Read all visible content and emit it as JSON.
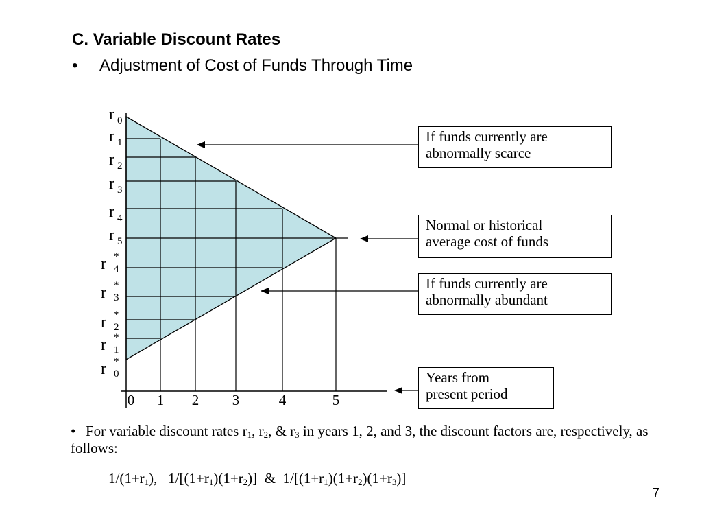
{
  "title": "C. Variable Discount Rates",
  "bullet": {
    "marker": "•",
    "text": "Adjustment of Cost of Funds Through Time"
  },
  "diagram": {
    "fill_color": "#bfe2e7",
    "y_labels": [
      {
        "base": "r",
        "sub": "0",
        "star": ""
      },
      {
        "base": "r",
        "sub": "1",
        "star": ""
      },
      {
        "base": "r",
        "sub": "2",
        "star": ""
      },
      {
        "base": "r",
        "sub": "3",
        "star": ""
      },
      {
        "base": "r",
        "sub": "4",
        "star": ""
      },
      {
        "base": "r",
        "sub": "5",
        "star": ""
      },
      {
        "base": "r",
        "sub": "4",
        "star": "*"
      },
      {
        "base": "r",
        "sub": "3",
        "star": "*"
      },
      {
        "base": "r",
        "sub": "2",
        "star": "*"
      },
      {
        "base": "r",
        "sub": "1",
        "star": "*"
      },
      {
        "base": "r",
        "sub": "0",
        "star": "*"
      }
    ],
    "x_labels": [
      "0",
      "1",
      "2",
      "3",
      "4",
      "5"
    ]
  },
  "callouts": {
    "scarce": {
      "line1": "If funds currently are",
      "line2": "abnormally scarce"
    },
    "normal": {
      "line1": "Normal or historical",
      "line2": "average cost of funds"
    },
    "abundant": {
      "line1": "If funds currently are",
      "line2": "abnormally abundant"
    },
    "years": {
      "line1": "Years from",
      "line2": "present period"
    }
  },
  "bottom": {
    "marker": "•",
    "intro": "For variable discount rates r",
    "s1": "1",
    "comma1": ", r",
    "s2": "2",
    "amp": ", & r",
    "s3": "3",
    "rest": " in years 1, 2, and 3, the discount factors are, respectively, as follows:"
  },
  "formula": {
    "f1a": "1/(1+r",
    "f1s": "1",
    "f1b": "),",
    "f2a": "1/[(1+r",
    "f2s1": "1",
    "f2b": ")(1+r",
    "f2s2": "2",
    "f2c": ")]",
    "amp": "&",
    "f3a": "1/[(1+r",
    "f3s1": "1",
    "f3b": ")(1+r",
    "f3s2": "2",
    "f3c": ")(1+r",
    "f3s3": "3",
    "f3d": ")]"
  },
  "page_number": "7"
}
